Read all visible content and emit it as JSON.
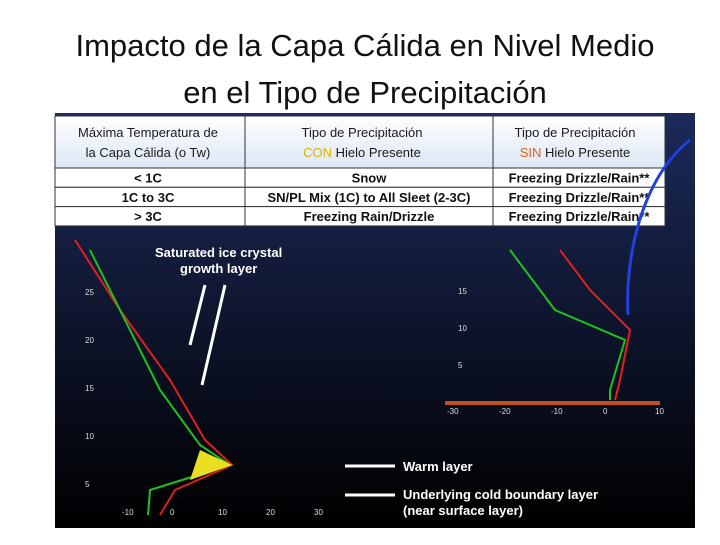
{
  "header": {
    "title_lines": [
      "Impacto de la Capa Cálida en Nivel Medio",
      "en el Tipo de Precipitación"
    ]
  },
  "table": {
    "header": [
      {
        "lines": [
          "Máxima Temperatura de",
          "la Capa Cálida (o Tw)"
        ]
      },
      {
        "line1": "Tipo de Precipitación",
        "highlight": "CON",
        "rest": " Hielo Presente"
      },
      {
        "line1": "Tipo de Precipitación",
        "highlight": "SIN",
        "rest": " Hielo Presente"
      }
    ],
    "rows": [
      [
        "< 1C",
        "Snow",
        "Freezing Drizzle/Rain**"
      ],
      [
        "1C to 3C",
        "SN/PL Mix (1C) to All Sleet (2-3C)",
        "Freezing Drizzle/Rain**"
      ],
      [
        "> 3C",
        "Freezing Rain/Drizzle",
        "Freezing Drizzle/Rain**"
      ]
    ]
  },
  "diagram": {
    "annotations": {
      "ice_layer": [
        "Saturated ice crystal",
        "growth layer"
      ],
      "warm_layer": "Warm layer",
      "cold_layer": [
        "Underlying cold boundary layer",
        "(near surface layer)"
      ]
    },
    "left_yticks": [
      "25",
      "20",
      "15",
      "10",
      "5"
    ],
    "left_xticks": [
      "-10",
      "0",
      "10",
      "20",
      "30"
    ],
    "right_yticks": [
      "15",
      "10",
      "5"
    ],
    "right_xticks": [
      "-30",
      "-20",
      "-10",
      "0",
      "10"
    ]
  }
}
